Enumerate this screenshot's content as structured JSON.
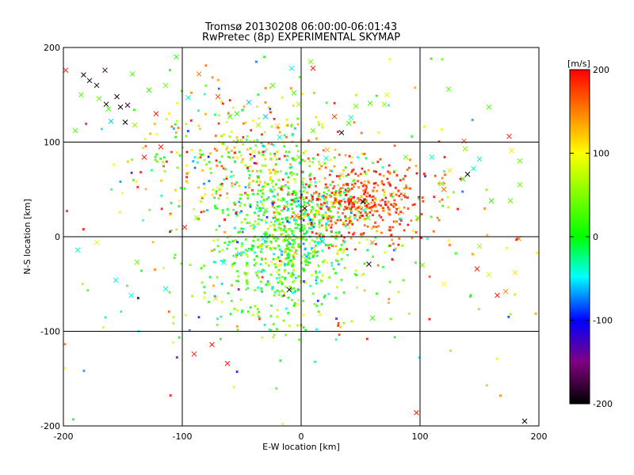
{
  "chart_data": {
    "type": "scatter",
    "title_line1": "Tromsø 20130208 06:00:00-06:01:43",
    "title_line2": "RwPretec (8p) EXPERIMENTAL SKYMAP",
    "xlabel": "E-W location [km]",
    "ylabel": "N-S location [km]",
    "xlim": [
      -200,
      200
    ],
    "ylim": [
      -200,
      200
    ],
    "x_ticks": [
      "-200",
      "-100",
      "0",
      "100",
      "200"
    ],
    "y_ticks": [
      "-200",
      "-100",
      "0",
      "100",
      "200"
    ],
    "grid_lines": [
      -100,
      0,
      100
    ],
    "colorbar": {
      "label": "[m/s]",
      "range": [
        -200,
        200
      ],
      "ticks": [
        "200",
        "100",
        "0",
        "-100",
        "-200"
      ],
      "tick_values": [
        200,
        100,
        0,
        -100,
        -200
      ]
    },
    "marker_legend": "small dots = individual detections, x = larger/strong detections (approximate reconstruction)",
    "crosses": [
      {
        "x": -183,
        "y": 171,
        "v": -190
      },
      {
        "x": -178,
        "y": 165,
        "v": -195
      },
      {
        "x": -172,
        "y": 160,
        "v": -190
      },
      {
        "x": -164,
        "y": 140,
        "v": -200
      },
      {
        "x": -155,
        "y": 148,
        "v": -185
      },
      {
        "x": -152,
        "y": 137,
        "v": -190
      },
      {
        "x": -148,
        "y": 121,
        "v": -200
      },
      {
        "x": -146,
        "y": 139,
        "v": -180
      },
      {
        "x": -160,
        "y": 122,
        "v": -60
      },
      {
        "x": -162,
        "y": 135,
        "v": 20
      },
      {
        "x": -170,
        "y": 146,
        "v": 40
      },
      {
        "x": -185,
        "y": 150,
        "v": 30
      },
      {
        "x": -198,
        "y": 176,
        "v": 190
      },
      {
        "x": -142,
        "y": 172,
        "v": 30
      },
      {
        "x": -128,
        "y": 155,
        "v": 20
      },
      {
        "x": -140,
        "y": 118,
        "v": 60
      },
      {
        "x": -122,
        "y": 130,
        "v": 190
      },
      {
        "x": -114,
        "y": 160,
        "v": 40
      },
      {
        "x": -105,
        "y": 190,
        "v": 10
      },
      {
        "x": -132,
        "y": 84,
        "v": 190
      },
      {
        "x": -118,
        "y": 95,
        "v": 190
      },
      {
        "x": -165,
        "y": 176,
        "v": -180
      },
      {
        "x": -190,
        "y": 112,
        "v": 30
      },
      {
        "x": -188,
        "y": -14,
        "v": -40
      },
      {
        "x": -172,
        "y": -6,
        "v": 90
      },
      {
        "x": -156,
        "y": -46,
        "v": -50
      },
      {
        "x": -143,
        "y": -62,
        "v": -50
      },
      {
        "x": -138,
        "y": -27,
        "v": 40
      },
      {
        "x": -114,
        "y": -55,
        "v": -40
      },
      {
        "x": -90,
        "y": -124,
        "v": 190
      },
      {
        "x": -75,
        "y": -114,
        "v": 190
      },
      {
        "x": -62,
        "y": -134,
        "v": 190
      },
      {
        "x": -65,
        "y": -27,
        "v": -40
      },
      {
        "x": -52,
        "y": -18,
        "v": -60
      },
      {
        "x": -72,
        "y": -65,
        "v": 120
      },
      {
        "x": -10,
        "y": -56,
        "v": -200
      },
      {
        "x": 4,
        "y": -24,
        "v": 30
      },
      {
        "x": 10,
        "y": -16,
        "v": 50
      },
      {
        "x": 18,
        "y": -5,
        "v": -60
      },
      {
        "x": 57,
        "y": -29,
        "v": -190
      },
      {
        "x": 60,
        "y": -6,
        "v": 140
      },
      {
        "x": 60,
        "y": -86,
        "v": 20
      },
      {
        "x": 97,
        "y": -186,
        "v": 190
      },
      {
        "x": 188,
        "y": -195,
        "v": -200
      },
      {
        "x": 148,
        "y": -34,
        "v": 190
      },
      {
        "x": 158,
        "y": -40,
        "v": 80
      },
      {
        "x": 165,
        "y": -62,
        "v": 190
      },
      {
        "x": 172,
        "y": -58,
        "v": 150
      },
      {
        "x": 180,
        "y": -38,
        "v": 110
      },
      {
        "x": 183,
        "y": -2,
        "v": 150
      },
      {
        "x": 140,
        "y": 66,
        "v": -200
      },
      {
        "x": 136,
        "y": 61,
        "v": 20
      },
      {
        "x": 145,
        "y": 72,
        "v": -40
      },
      {
        "x": 150,
        "y": 82,
        "v": -40
      },
      {
        "x": 125,
        "y": 70,
        "v": 110
      },
      {
        "x": 118,
        "y": 56,
        "v": 40
      },
      {
        "x": 137,
        "y": 101,
        "v": 170
      },
      {
        "x": 138,
        "y": 93,
        "v": 50
      },
      {
        "x": 177,
        "y": 91,
        "v": 110
      },
      {
        "x": 184,
        "y": 55,
        "v": 40
      },
      {
        "x": 176,
        "y": 38,
        "v": 40
      },
      {
        "x": 175,
        "y": 106,
        "v": 190
      },
      {
        "x": 158,
        "y": 137,
        "v": 30
      },
      {
        "x": 124,
        "y": 156,
        "v": 30
      },
      {
        "x": 110,
        "y": 84,
        "v": -40
      },
      {
        "x": 88,
        "y": 84,
        "v": 40
      },
      {
        "x": 70,
        "y": 140,
        "v": 50
      },
      {
        "x": 72,
        "y": 150,
        "v": 90
      },
      {
        "x": 58,
        "y": 141,
        "v": 30
      },
      {
        "x": 46,
        "y": 138,
        "v": 40
      },
      {
        "x": 42,
        "y": 126,
        "v": -40
      },
      {
        "x": 40,
        "y": 120,
        "v": 30
      },
      {
        "x": 34,
        "y": 110,
        "v": -200
      },
      {
        "x": 28,
        "y": 127,
        "v": 170
      },
      {
        "x": 22,
        "y": 92,
        "v": 130
      },
      {
        "x": 21,
        "y": 83,
        "v": -40
      },
      {
        "x": 8,
        "y": 185,
        "v": 40
      },
      {
        "x": 10,
        "y": 178,
        "v": 190
      },
      {
        "x": -8,
        "y": 178,
        "v": -40
      },
      {
        "x": -6,
        "y": 152,
        "v": 30
      },
      {
        "x": -2,
        "y": 140,
        "v": 60
      },
      {
        "x": -24,
        "y": 160,
        "v": 30
      },
      {
        "x": -30,
        "y": 127,
        "v": -60
      },
      {
        "x": -44,
        "y": 142,
        "v": -60
      },
      {
        "x": -54,
        "y": 130,
        "v": 20
      },
      {
        "x": -60,
        "y": 127,
        "v": 30
      },
      {
        "x": -70,
        "y": 148,
        "v": 170
      },
      {
        "x": -95,
        "y": 147,
        "v": -40
      },
      {
        "x": -86,
        "y": 172,
        "v": 150
      },
      {
        "x": -36,
        "y": 118,
        "v": 60
      },
      {
        "x": -20,
        "y": 117,
        "v": 120
      },
      {
        "x": -2,
        "y": 84,
        "v": 40
      },
      {
        "x": 3,
        "y": 30,
        "v": -200
      },
      {
        "x": -4,
        "y": 22,
        "v": 150
      },
      {
        "x": 52,
        "y": 37,
        "v": -200
      },
      {
        "x": 53,
        "y": 28,
        "v": -40
      },
      {
        "x": 56,
        "y": 20,
        "v": 30
      },
      {
        "x": 2,
        "y": -2,
        "v": 40
      },
      {
        "x": -32,
        "y": -2,
        "v": -50
      },
      {
        "x": -30,
        "y": 28,
        "v": 40
      },
      {
        "x": -98,
        "y": 10,
        "v": 190
      },
      {
        "x": -88,
        "y": 20,
        "v": 60
      },
      {
        "x": 120,
        "y": 50,
        "v": 160
      },
      {
        "x": 98,
        "y": 20,
        "v": 40
      },
      {
        "x": 160,
        "y": 38,
        "v": 20
      },
      {
        "x": 150,
        "y": -10,
        "v": 60
      },
      {
        "x": 102,
        "y": -30,
        "v": 40
      },
      {
        "x": 120,
        "y": -50,
        "v": 100
      },
      {
        "x": -18,
        "y": 105,
        "v": -40
      },
      {
        "x": -40,
        "y": 90,
        "v": 90
      },
      {
        "x": 10,
        "y": 112,
        "v": 40
      },
      {
        "x": 34,
        "y": 65,
        "v": 120
      },
      {
        "x": 184,
        "y": 80,
        "v": 40
      }
    ]
  }
}
